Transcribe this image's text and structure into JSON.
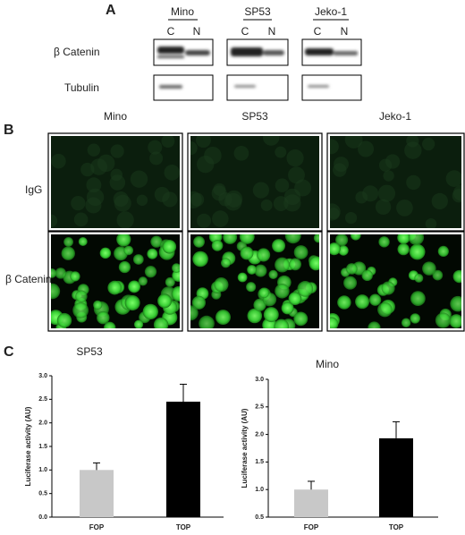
{
  "panel_a": {
    "label": "A",
    "columns": [
      "Mino",
      "SP53",
      "Jeko-1"
    ],
    "lanes": [
      "C",
      "N",
      "C",
      "N",
      "C",
      "N"
    ],
    "rows": [
      "β Catenin",
      "Tubulin"
    ]
  },
  "panel_b": {
    "label": "B",
    "columns": [
      "Mino",
      "SP53",
      "Jeko-1"
    ],
    "rows": [
      "IgG",
      "β Catenin"
    ]
  },
  "panel_c": {
    "label": "C"
  },
  "chart_data": [
    {
      "type": "bar",
      "title": "SP53",
      "y_label": "Luciferase activity (AU)",
      "categories": [
        "FOP",
        "TOP"
      ],
      "values": [
        1.0,
        2.45
      ],
      "errors": [
        0.15,
        0.37
      ],
      "colors": [
        "#c8c8c8",
        "#000000"
      ],
      "ylim": [
        0,
        3.0
      ],
      "yticks": [
        {
          "value": 0,
          "label": "0.0"
        },
        {
          "value": 0.5,
          "label": "0.5"
        },
        {
          "value": 1,
          "label": "1.0"
        },
        {
          "value": 1.5,
          "label": "1.5"
        },
        {
          "value": 2,
          "label": "2.0"
        },
        {
          "value": 2.5,
          "label": "2.5"
        },
        {
          "value": 3,
          "label": "3.0"
        }
      ]
    },
    {
      "type": "bar",
      "title": "Mino",
      "y_label": "Luciferase activity (AU)",
      "categories": [
        "FOP",
        "TOP"
      ],
      "values": [
        1.0,
        1.93
      ],
      "errors": [
        0.15,
        0.3
      ],
      "colors": [
        "#c8c8c8",
        "#000000"
      ],
      "ylim": [
        0.5,
        3.0
      ],
      "yticks": [
        {
          "value": 0.5,
          "label": "0.5"
        },
        {
          "value": 1,
          "label": "1.0"
        },
        {
          "value": 1.5,
          "label": "1.5"
        },
        {
          "value": 2,
          "label": "2.0"
        },
        {
          "value": 2.5,
          "label": "2.5"
        },
        {
          "value": 3,
          "label": "3.0"
        }
      ]
    }
  ]
}
